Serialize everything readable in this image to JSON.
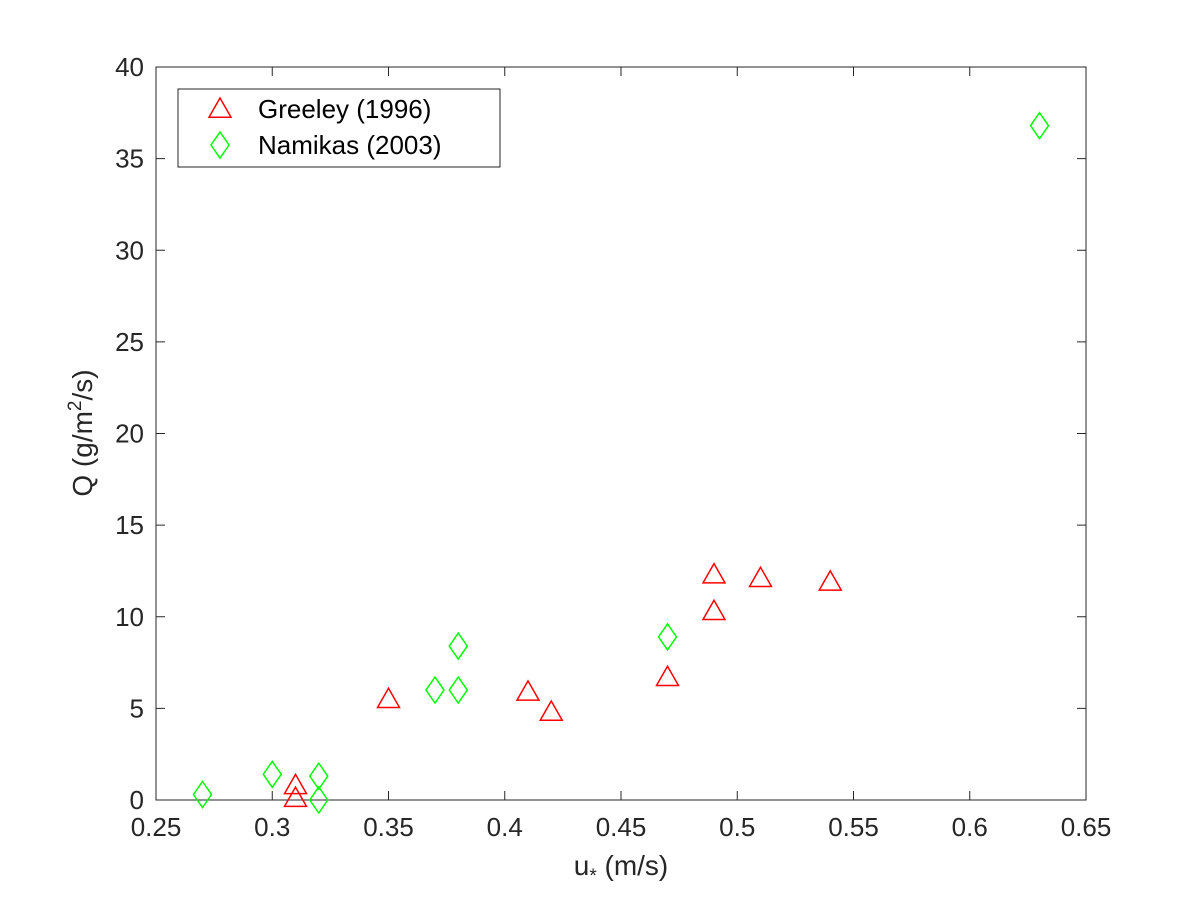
{
  "chart_data": {
    "type": "scatter",
    "xlabel": {
      "main": "u",
      "sub": "*",
      "rest": " (m/s)"
    },
    "ylabel": {
      "main": "Q (g/m",
      "sup": "2",
      "rest": "/s)"
    },
    "xlim": [
      0.25,
      0.65
    ],
    "ylim": [
      0,
      40
    ],
    "xticks": [
      "0.25",
      "0.3",
      "0.35",
      "0.4",
      "0.45",
      "0.5",
      "0.55",
      "0.6",
      "0.65"
    ],
    "yticks": [
      "0",
      "5",
      "10",
      "15",
      "20",
      "25",
      "30",
      "35",
      "40"
    ],
    "grid": false,
    "legend_position": "top-left",
    "series": [
      {
        "name": "Greeley (1996)",
        "marker": "triangle",
        "color": "#ff0000",
        "points": [
          [
            0.31,
            0.8
          ],
          [
            0.31,
            0.1
          ],
          [
            0.35,
            5.5
          ],
          [
            0.41,
            5.9
          ],
          [
            0.42,
            4.8
          ],
          [
            0.47,
            6.7
          ],
          [
            0.49,
            12.3
          ],
          [
            0.49,
            10.3
          ],
          [
            0.51,
            12.1
          ],
          [
            0.54,
            11.9
          ]
        ]
      },
      {
        "name": "Namikas (2003)",
        "marker": "diamond",
        "color": "#00ff00",
        "points": [
          [
            0.27,
            0.3
          ],
          [
            0.3,
            1.4
          ],
          [
            0.32,
            1.3
          ],
          [
            0.32,
            0.0
          ],
          [
            0.37,
            6.0
          ],
          [
            0.38,
            6.0
          ],
          [
            0.38,
            8.4
          ],
          [
            0.47,
            8.9
          ],
          [
            0.63,
            36.8
          ]
        ]
      }
    ]
  }
}
